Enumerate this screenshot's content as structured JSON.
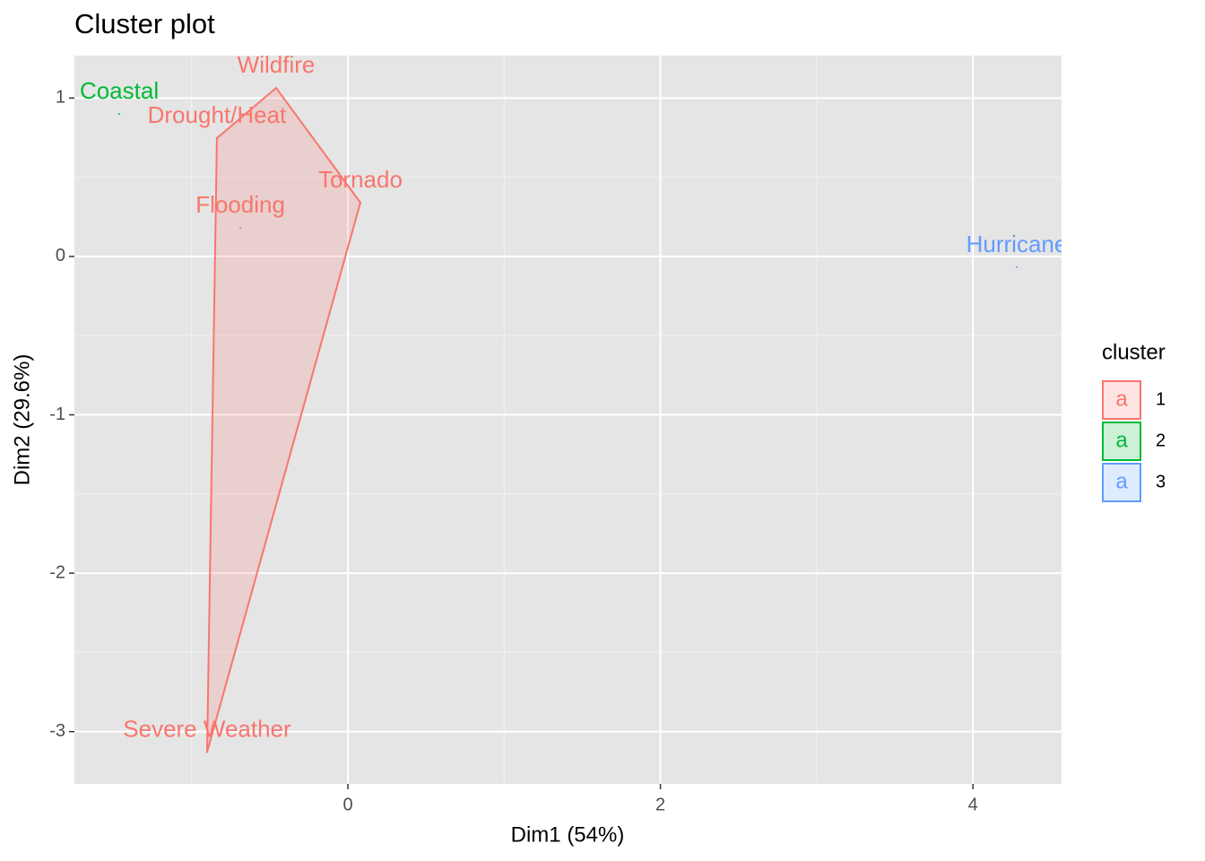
{
  "chart_data": {
    "type": "cluster",
    "title": "Cluster plot",
    "x_label": "Dim1 (54%)",
    "y_label": "Dim2 (29.6%)",
    "xlim": [
      -1.75,
      4.567
    ],
    "ylim": [
      -3.33,
      1.268
    ],
    "xticks": [
      0,
      2,
      4
    ],
    "yticks": [
      -3,
      -2,
      -1,
      0,
      1
    ],
    "grid": true,
    "legend_title": "cluster",
    "legend_key_text": "a",
    "legend_position": "right",
    "series": [
      {
        "name": "1",
        "color": "#f8766d",
        "labels": [
          "Wildfire",
          "Drought/Heat",
          "Tornado",
          "Flooding",
          "Severe Weather"
        ],
        "x": [
          -0.459,
          -0.838,
          0.08,
          -0.688,
          -0.901
        ],
        "y": [
          1.064,
          0.747,
          0.34,
          0.181,
          -3.13
        ]
      },
      {
        "name": "2",
        "color": "#00ba38",
        "labels": [
          "Coastal"
        ],
        "x": [
          -1.463
        ],
        "y": [
          0.9
        ]
      },
      {
        "name": "3",
        "color": "#619cff",
        "labels": [
          "Hurricane"
        ],
        "x": [
          4.28
        ],
        "y": [
          -0.068
        ]
      }
    ]
  }
}
